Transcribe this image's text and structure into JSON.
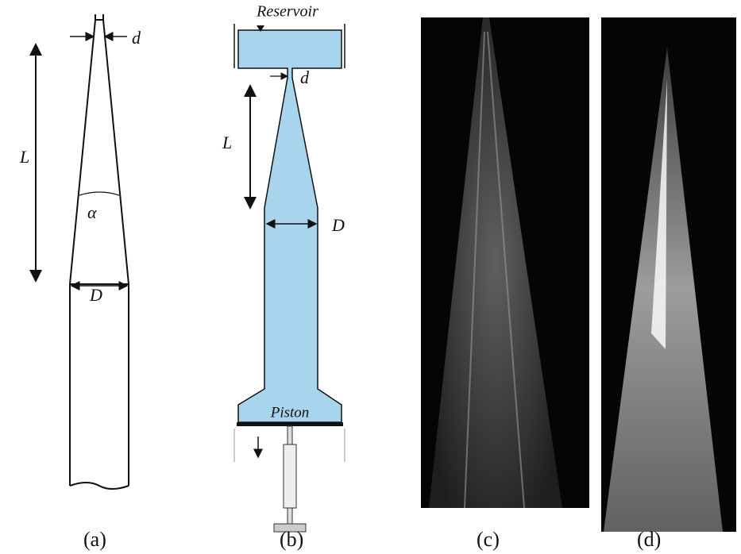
{
  "panels": [
    {
      "caption": "(a)",
      "labels": {
        "nozzle": "d",
        "length": "L",
        "angle": "α",
        "diameter": "D"
      }
    },
    {
      "caption": "(b)",
      "labels": {
        "reservoir": "Reservoir",
        "nozzle": "d",
        "length": "L",
        "diameter": "D",
        "piston": "Piston"
      }
    },
    {
      "caption": "(c)"
    },
    {
      "caption": "(d)"
    }
  ]
}
